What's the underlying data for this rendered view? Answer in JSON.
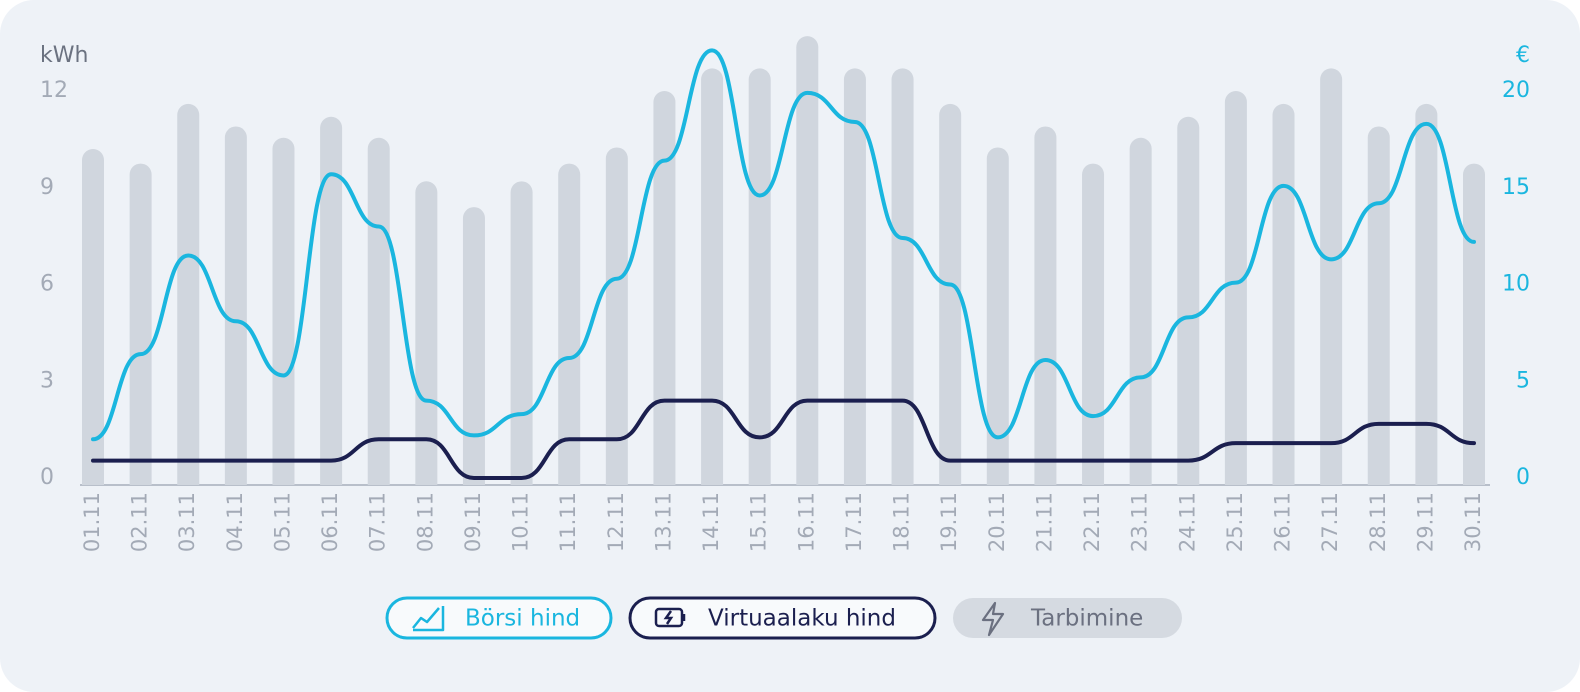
{
  "chart_data": {
    "type": "combo",
    "ylabel": "kWh",
    "y2label": "€",
    "categories": [
      "01.11",
      "02.11",
      "03.11",
      "04.11",
      "05.11",
      "06.11",
      "07.11",
      "08.11",
      "09.11",
      "10.11",
      "11.11",
      "12.11",
      "13.11",
      "14.11",
      "15.11",
      "16.11",
      "17.11",
      "18.11",
      "19.11",
      "20.11",
      "21.11",
      "22.11",
      "23.11",
      "24.11",
      "25.11",
      "26.11",
      "27.11",
      "28.11",
      "29.11",
      "30.11"
    ],
    "series": [
      {
        "name": "Börsi hind",
        "type": "line",
        "axis": "y2",
        "color": "#1ab6df",
        "values": [
          2.0,
          6.4,
          11.5,
          8.1,
          5.3,
          15.7,
          13.0,
          4.0,
          2.2,
          3.3,
          6.2,
          10.3,
          16.4,
          22.1,
          14.6,
          19.9,
          18.4,
          12.4,
          10.0,
          2.1,
          6.1,
          3.2,
          5.2,
          8.3,
          10.1,
          15.1,
          11.3,
          14.2,
          18.3,
          12.2
        ]
      },
      {
        "name": "Virtuaalaku hind",
        "type": "line",
        "axis": "y2",
        "color": "#1b1f4f",
        "values": [
          0.9,
          0.9,
          0.9,
          0.9,
          0.9,
          0.9,
          2.0,
          2.0,
          0,
          0,
          2.0,
          2.0,
          4.0,
          4.0,
          2.1,
          4.0,
          4.0,
          4.0,
          0.9,
          0.9,
          0.9,
          0.9,
          0.9,
          0.9,
          1.8,
          1.8,
          1.8,
          2.8,
          2.8,
          1.8
        ]
      },
      {
        "name": "Tarbimine",
        "type": "bar",
        "color": "#d0d6de",
        "values": [
          10.2,
          9.75,
          11.6,
          10.9,
          10.55,
          11.2,
          10.55,
          9.2,
          8.4,
          9.2,
          9.75,
          10.25,
          12.0,
          12.7,
          12.7,
          13.7,
          12.7,
          12.7,
          11.6,
          10.25,
          10.9,
          9.75,
          10.55,
          11.2,
          12.0,
          11.6,
          12.7,
          10.9,
          11.6,
          9.75
        ]
      }
    ],
    "ylim": [
      0,
      12
    ],
    "yticks": [
      0,
      3,
      6,
      9,
      12
    ],
    "y2lim": [
      0,
      20
    ],
    "y2ticks": [
      0,
      5,
      10,
      15,
      20
    ]
  }
}
